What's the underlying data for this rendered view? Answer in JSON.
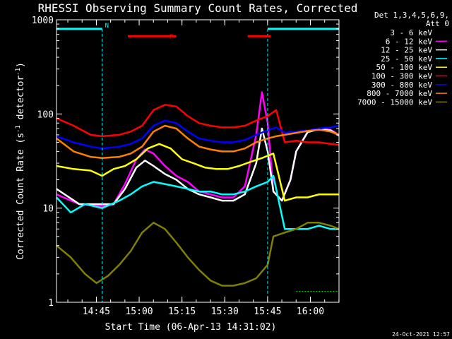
{
  "chart_data": {
    "type": "line",
    "title": "RHESSI Observing Summary Count Rates, Corrected",
    "xlabel": "Start Time (06-Apr-13 14:31:02)",
    "ylabel_main": "Corrected Count Rate (s",
    "ylabel_sup1": "-1",
    "ylabel_mid": " detector",
    "ylabel_sup2": "-1",
    "ylabel_end": ")",
    "y_scale": "log",
    "ylim": [
      1,
      1000
    ],
    "xlim_minutes": [
      0,
      99
    ],
    "x_start": "14:31:02",
    "y_ticks": [
      {
        "value": 1,
        "label": "1"
      },
      {
        "value": 10,
        "label": "10"
      },
      {
        "value": 100,
        "label": "100"
      },
      {
        "value": 1000,
        "label": "1000"
      }
    ],
    "x_ticks": [
      {
        "minutes": 13.97,
        "label": "14:45"
      },
      {
        "minutes": 28.97,
        "label": "15:00"
      },
      {
        "minutes": 43.97,
        "label": "15:15"
      },
      {
        "minutes": 58.97,
        "label": "15:30"
      },
      {
        "minutes": 73.97,
        "label": "15:45"
      },
      {
        "minutes": 88.97,
        "label": "16:00"
      }
    ],
    "legend_header": [
      "Det 1,3,4,5,6,9,",
      "Att 0"
    ],
    "legend_placement": "right",
    "flags": [
      {
        "label": "N",
        "color": "#00ffff",
        "segments": [
          [
            0,
            16
          ],
          [
            74,
            99
          ]
        ],
        "y_value": 800,
        "dashes_at_minutes": [
          16,
          74
        ]
      },
      {
        "label": "F",
        "color": "#ff0000",
        "segments": [
          [
            25,
            42
          ],
          [
            67,
            75
          ]
        ],
        "y_value": 670
      }
    ],
    "annotation_segment": {
      "color": "#00ff00",
      "minutes": [
        84,
        99
      ],
      "y_value": 1.3
    },
    "series": [
      {
        "name": "3 - 6 keV",
        "color": "#000000",
        "values": [
          [
            0,
            14
          ],
          [
            8,
            11
          ],
          [
            16,
            10.5
          ],
          [
            20,
            11
          ],
          [
            24,
            17
          ],
          [
            28,
            30
          ],
          [
            31,
            40
          ],
          [
            34,
            35
          ],
          [
            38,
            27
          ],
          [
            42,
            22
          ],
          [
            46,
            18
          ],
          [
            50,
            15
          ],
          [
            54,
            14
          ],
          [
            58,
            12
          ],
          [
            62,
            12
          ],
          [
            66,
            15
          ],
          [
            70,
            45
          ],
          [
            72,
            120
          ],
          [
            74,
            60
          ],
          [
            76,
            15
          ],
          [
            79,
            12
          ],
          [
            82,
            20
          ],
          [
            84,
            40
          ],
          [
            88,
            65
          ],
          [
            92,
            70
          ],
          [
            96,
            68
          ],
          [
            99,
            60
          ]
        ]
      },
      {
        "name": "6 - 12 keV",
        "color": "#ff00ff",
        "values": [
          [
            0,
            14
          ],
          [
            8,
            11
          ],
          [
            16,
            10.5
          ],
          [
            20,
            11
          ],
          [
            24,
            18
          ],
          [
            28,
            33
          ],
          [
            31,
            42
          ],
          [
            34,
            38
          ],
          [
            38,
            28
          ],
          [
            42,
            22
          ],
          [
            46,
            19
          ],
          [
            50,
            15
          ],
          [
            54,
            14
          ],
          [
            58,
            13
          ],
          [
            62,
            13
          ],
          [
            66,
            17
          ],
          [
            70,
            60
          ],
          [
            72,
            170
          ],
          [
            74,
            80
          ],
          [
            76,
            15
          ],
          [
            79,
            12
          ],
          [
            82,
            20
          ],
          [
            84,
            40
          ],
          [
            88,
            65
          ],
          [
            92,
            70
          ],
          [
            96,
            68
          ],
          [
            99,
            60
          ]
        ]
      },
      {
        "name": "12 - 25 keV",
        "color": "#ffffff",
        "values": [
          [
            0,
            16
          ],
          [
            8,
            11
          ],
          [
            16,
            11
          ],
          [
            20,
            11
          ],
          [
            24,
            16
          ],
          [
            28,
            27
          ],
          [
            31,
            32
          ],
          [
            34,
            28
          ],
          [
            38,
            23
          ],
          [
            42,
            20
          ],
          [
            46,
            16
          ],
          [
            50,
            14
          ],
          [
            54,
            13
          ],
          [
            58,
            12
          ],
          [
            62,
            12
          ],
          [
            66,
            14
          ],
          [
            70,
            30
          ],
          [
            72,
            70
          ],
          [
            74,
            40
          ],
          [
            76,
            15
          ],
          [
            79,
            12
          ],
          [
            82,
            20
          ],
          [
            84,
            40
          ],
          [
            88,
            64
          ],
          [
            92,
            69
          ],
          [
            96,
            67
          ],
          [
            99,
            59
          ]
        ]
      },
      {
        "name": "25 - 50 keV",
        "color": "#00ffff",
        "values": [
          [
            0,
            13
          ],
          [
            5,
            9
          ],
          [
            10,
            11
          ],
          [
            16,
            10
          ],
          [
            22,
            12
          ],
          [
            26,
            14
          ],
          [
            30,
            17
          ],
          [
            34,
            19
          ],
          [
            38,
            18
          ],
          [
            42,
            17
          ],
          [
            46,
            16
          ],
          [
            50,
            15
          ],
          [
            54,
            15
          ],
          [
            58,
            14
          ],
          [
            62,
            14
          ],
          [
            66,
            15
          ],
          [
            70,
            17
          ],
          [
            74,
            19
          ],
          [
            76,
            22
          ],
          [
            80,
            6
          ],
          [
            84,
            6
          ],
          [
            88,
            6
          ],
          [
            92,
            6.5
          ],
          [
            96,
            6
          ],
          [
            99,
            6
          ]
        ]
      },
      {
        "name": "50 - 100 keV",
        "color": "#ffff00",
        "values": [
          [
            0,
            28
          ],
          [
            6,
            26
          ],
          [
            12,
            25
          ],
          [
            16,
            22
          ],
          [
            20,
            26
          ],
          [
            24,
            28
          ],
          [
            28,
            33
          ],
          [
            32,
            43
          ],
          [
            36,
            48
          ],
          [
            40,
            43
          ],
          [
            44,
            33
          ],
          [
            48,
            30
          ],
          [
            52,
            27
          ],
          [
            56,
            26
          ],
          [
            60,
            26
          ],
          [
            64,
            28
          ],
          [
            68,
            31
          ],
          [
            72,
            34
          ],
          [
            74,
            36
          ],
          [
            76,
            38
          ],
          [
            80,
            12
          ],
          [
            84,
            13
          ],
          [
            88,
            13
          ],
          [
            92,
            14
          ],
          [
            96,
            14
          ],
          [
            99,
            14
          ]
        ]
      },
      {
        "name": "100 - 300 keV",
        "color": "#ff0000",
        "values": [
          [
            0,
            90
          ],
          [
            6,
            75
          ],
          [
            12,
            60
          ],
          [
            16,
            58
          ],
          [
            22,
            60
          ],
          [
            26,
            65
          ],
          [
            30,
            75
          ],
          [
            34,
            110
          ],
          [
            38,
            125
          ],
          [
            42,
            120
          ],
          [
            46,
            95
          ],
          [
            50,
            80
          ],
          [
            54,
            75
          ],
          [
            58,
            72
          ],
          [
            62,
            72
          ],
          [
            66,
            75
          ],
          [
            70,
            85
          ],
          [
            74,
            95
          ],
          [
            77,
            110
          ],
          [
            80,
            50
          ],
          [
            84,
            52
          ],
          [
            88,
            50
          ],
          [
            92,
            50
          ],
          [
            96,
            48
          ],
          [
            99,
            47
          ]
        ]
      },
      {
        "name": "300 - 800 keV",
        "color": "#0000ff",
        "values": [
          [
            0,
            58
          ],
          [
            6,
            50
          ],
          [
            12,
            45
          ],
          [
            16,
            43
          ],
          [
            22,
            45
          ],
          [
            26,
            48
          ],
          [
            30,
            55
          ],
          [
            34,
            75
          ],
          [
            38,
            85
          ],
          [
            42,
            80
          ],
          [
            46,
            65
          ],
          [
            50,
            55
          ],
          [
            54,
            52
          ],
          [
            58,
            50
          ],
          [
            62,
            50
          ],
          [
            66,
            53
          ],
          [
            70,
            60
          ],
          [
            74,
            67
          ],
          [
            77,
            72
          ],
          [
            80,
            63
          ],
          [
            84,
            65
          ],
          [
            88,
            67
          ],
          [
            92,
            70
          ],
          [
            96,
            72
          ],
          [
            99,
            75
          ]
        ]
      },
      {
        "name": "800 - 7000 keV",
        "color": "#ff8000",
        "values": [
          [
            0,
            55
          ],
          [
            6,
            40
          ],
          [
            12,
            35
          ],
          [
            16,
            34
          ],
          [
            22,
            35
          ],
          [
            26,
            38
          ],
          [
            30,
            45
          ],
          [
            34,
            65
          ],
          [
            38,
            75
          ],
          [
            42,
            70
          ],
          [
            46,
            55
          ],
          [
            50,
            45
          ],
          [
            54,
            42
          ],
          [
            58,
            40
          ],
          [
            62,
            40
          ],
          [
            66,
            43
          ],
          [
            70,
            50
          ],
          [
            74,
            55
          ],
          [
            77,
            58
          ],
          [
            80,
            60
          ],
          [
            84,
            63
          ],
          [
            88,
            66
          ],
          [
            92,
            68
          ],
          [
            96,
            65
          ],
          [
            99,
            60
          ]
        ]
      },
      {
        "name": "7000 - 15000 keV",
        "color": "#808000",
        "values": [
          [
            0,
            4
          ],
          [
            5,
            3
          ],
          [
            10,
            2
          ],
          [
            14,
            1.6
          ],
          [
            18,
            1.9
          ],
          [
            22,
            2.5
          ],
          [
            26,
            3.5
          ],
          [
            30,
            5.5
          ],
          [
            34,
            7
          ],
          [
            38,
            6
          ],
          [
            42,
            4.3
          ],
          [
            46,
            3
          ],
          [
            50,
            2.2
          ],
          [
            54,
            1.7
          ],
          [
            58,
            1.5
          ],
          [
            62,
            1.5
          ],
          [
            66,
            1.6
          ],
          [
            70,
            1.8
          ],
          [
            74,
            2.5
          ],
          [
            76,
            5
          ],
          [
            80,
            5.5
          ],
          [
            84,
            6
          ],
          [
            88,
            7
          ],
          [
            92,
            7
          ],
          [
            96,
            6.5
          ],
          [
            99,
            6
          ]
        ]
      }
    ],
    "grid": false
  },
  "footer": {
    "timestamp": "24-Oct-2021 12:57"
  }
}
